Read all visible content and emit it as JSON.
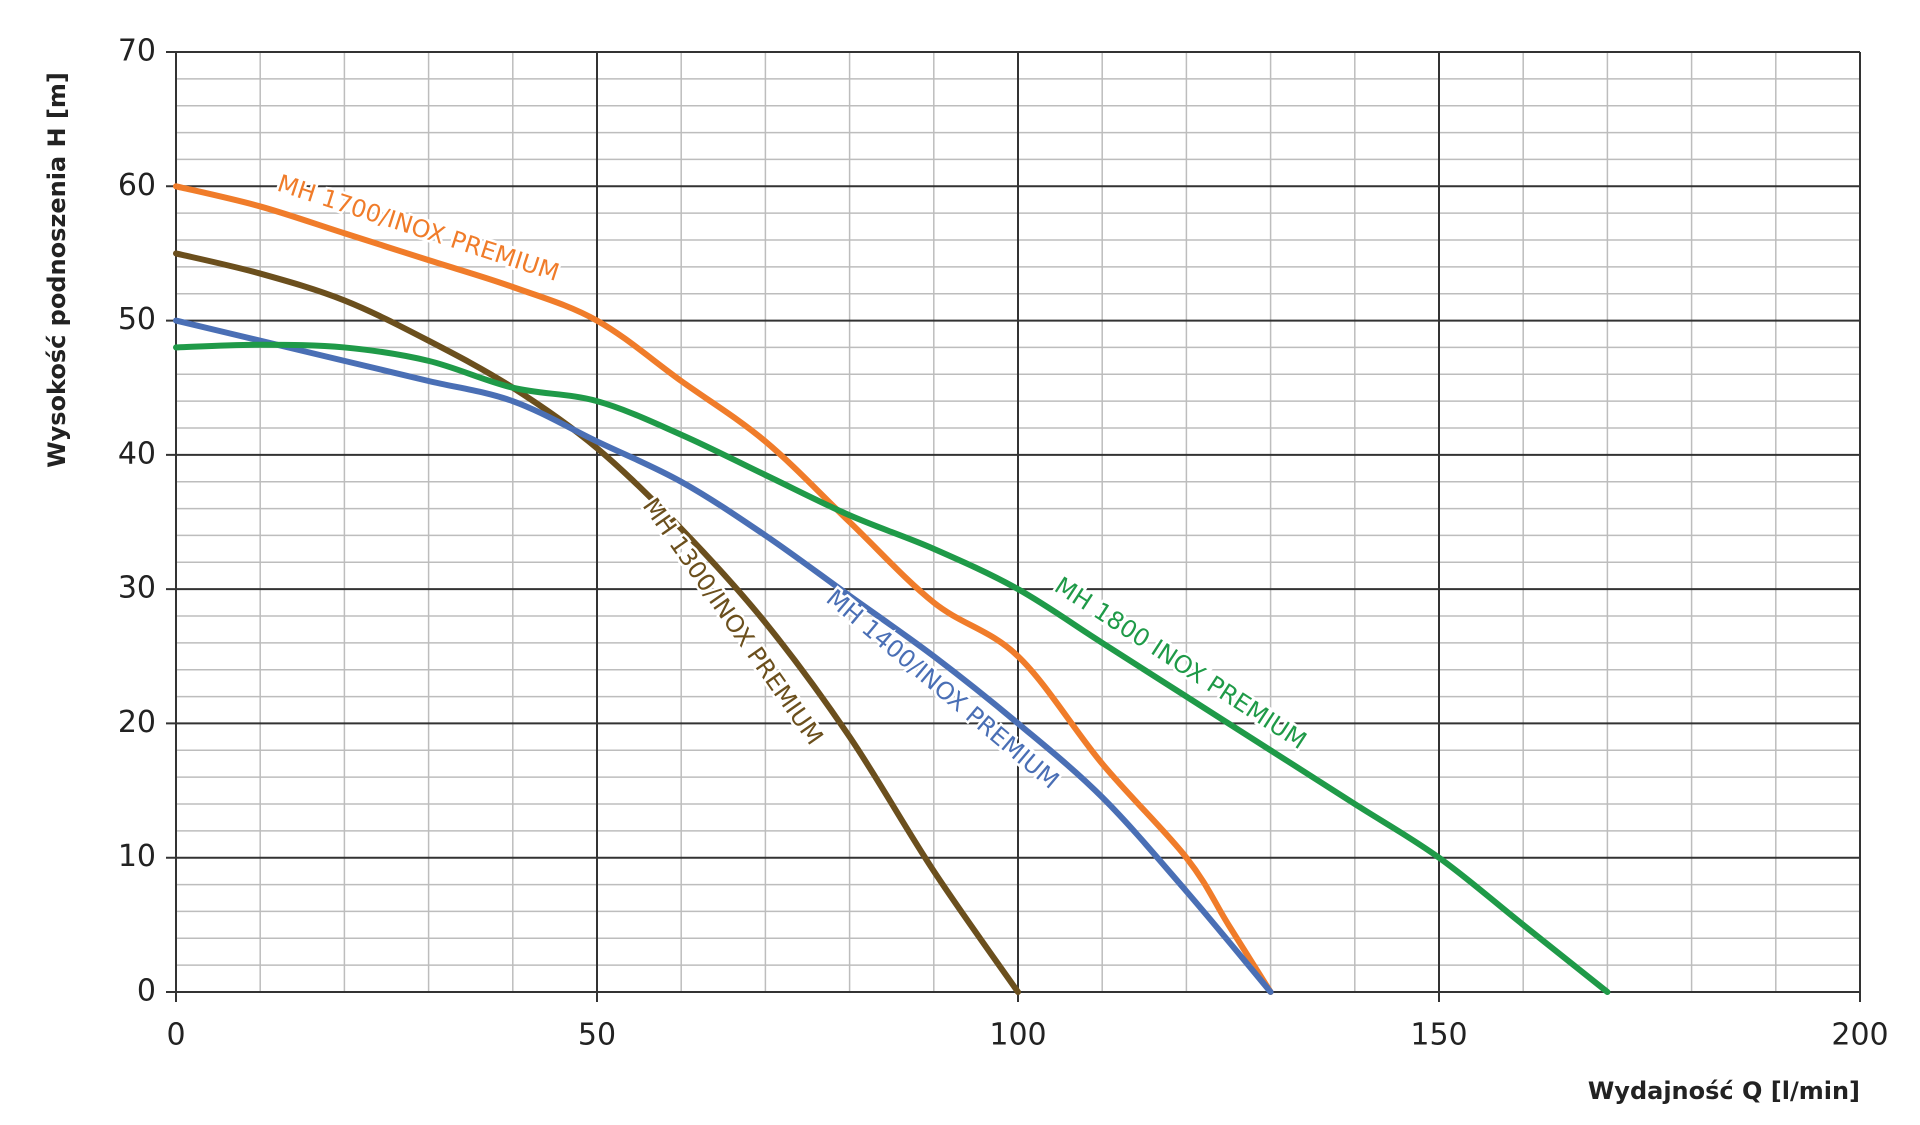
{
  "chart_data": {
    "type": "line",
    "x_label": "Wydajność Q [l/min]",
    "y_label": "Wysokość podnoszenia H [m]",
    "xlim": [
      0,
      200
    ],
    "xticks": [
      0,
      50,
      100,
      150,
      200
    ],
    "xminorticks": [
      10,
      20,
      30,
      40,
      60,
      70,
      80,
      90,
      110,
      120,
      130,
      140,
      160,
      170,
      180,
      190
    ],
    "ylim": [
      0,
      70
    ],
    "yticks": [
      0,
      10,
      20,
      30,
      40,
      50,
      60,
      70
    ],
    "yminorticks": [
      2,
      4,
      6,
      8,
      12,
      14,
      16,
      18,
      22,
      24,
      26,
      28,
      32,
      34,
      36,
      38,
      42,
      44,
      46,
      48,
      52,
      54,
      56,
      58,
      62,
      64,
      66,
      68
    ],
    "grid": true,
    "series": [
      {
        "name": "MH 1700/INOX PREMIUM",
        "color": "#f07c2a",
        "x": [
          0,
          10,
          20,
          30,
          40,
          50,
          60,
          70,
          80,
          90,
          100,
          110,
          120,
          125,
          130
        ],
        "values": [
          60,
          58.5,
          56.5,
          54.5,
          52.5,
          50,
          45.5,
          41,
          35,
          29,
          25,
          17,
          10,
          5,
          0
        ]
      },
      {
        "name": "MH 1300/INOX PREMIUM",
        "color": "#6b4f1d",
        "x": [
          0,
          10,
          20,
          30,
          40,
          50,
          60,
          70,
          80,
          90,
          100
        ],
        "values": [
          55,
          53.5,
          51.5,
          48.5,
          45,
          40.5,
          34.5,
          27.5,
          19,
          9,
          0
        ]
      },
      {
        "name": "MH 1400/INOX PREMIUM",
        "color": "#4a6fb5",
        "x": [
          0,
          10,
          20,
          30,
          40,
          50,
          60,
          70,
          80,
          90,
          100,
          110,
          120,
          130
        ],
        "values": [
          50,
          48.5,
          47,
          45.5,
          44,
          41,
          38,
          34,
          29.5,
          25,
          20,
          14.5,
          7.5,
          0
        ]
      },
      {
        "name": "MH 1800 INOX PREMIUM",
        "color": "#1f9a48",
        "x": [
          0,
          10,
          20,
          30,
          40,
          50,
          60,
          70,
          80,
          90,
          100,
          110,
          120,
          130,
          140,
          150,
          160,
          170
        ],
        "values": [
          48,
          48.2,
          48,
          47,
          45,
          44,
          41.5,
          38.5,
          35.5,
          33,
          30,
          26,
          22,
          18,
          14,
          10,
          5,
          0
        ]
      }
    ]
  }
}
